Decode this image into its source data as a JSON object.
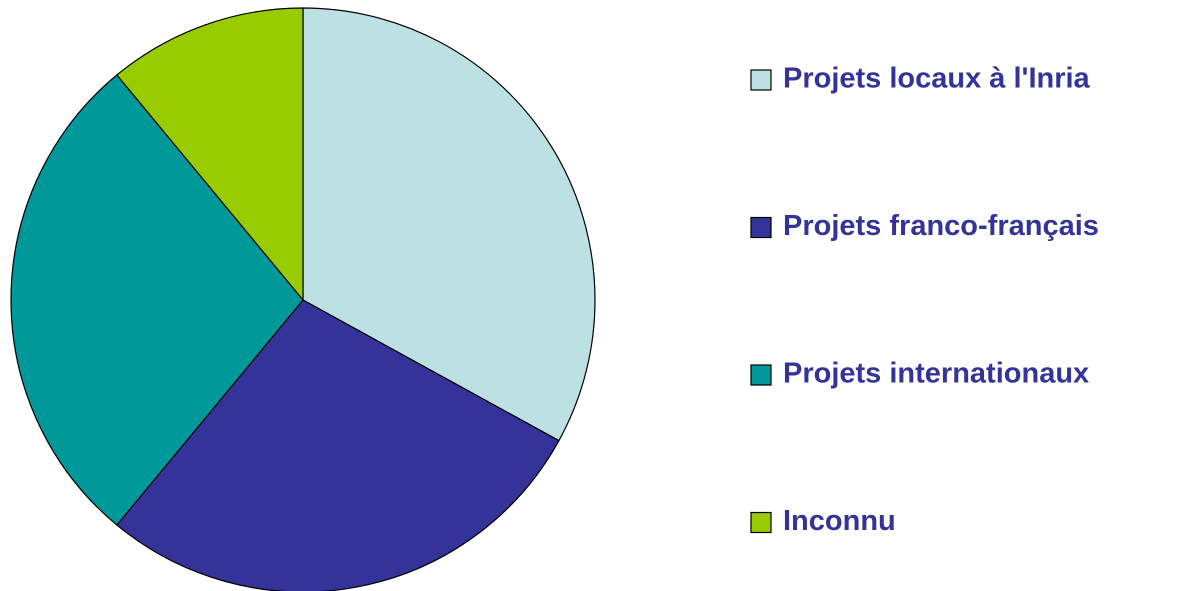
{
  "chart_data": {
    "type": "pie",
    "categories": [
      "Projets locaux à l'Inria",
      "Projets franco-français",
      "Projets internationaux",
      "Inconnu"
    ],
    "values": [
      33,
      28,
      28,
      11
    ],
    "colors": [
      "#bde0e3",
      "#333399",
      "#009999",
      "#99cc00"
    ]
  }
}
